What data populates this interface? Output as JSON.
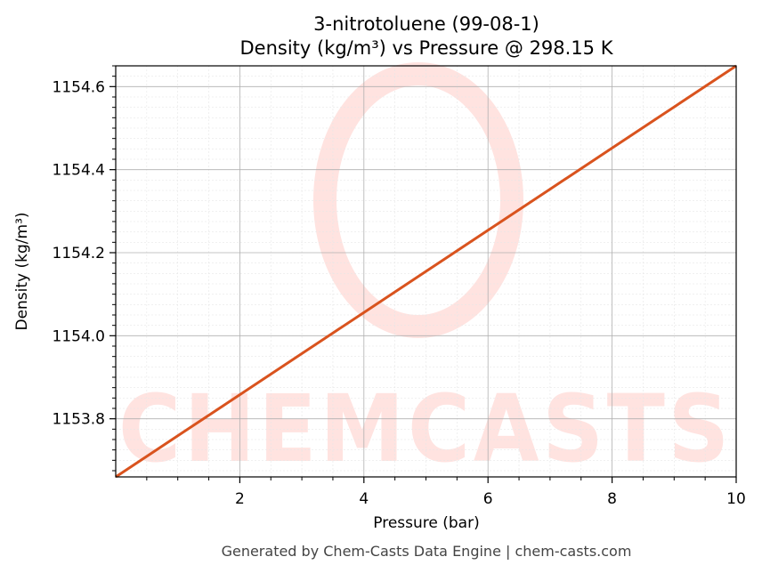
{
  "chart_data": {
    "type": "line",
    "title": "3-nitrotoluene (99-08-1)",
    "subtitle": "Density (kg/m³) vs Pressure @ 298.15 K",
    "xlabel": "Pressure (bar)",
    "ylabel": "Density (kg/m³)",
    "xlim": [
      0,
      10
    ],
    "ylim": [
      1153.66,
      1154.65
    ],
    "x_ticks": [
      2,
      4,
      6,
      8,
      10
    ],
    "x_tick_labels": [
      "2",
      "4",
      "6",
      "8",
      "10"
    ],
    "y_ticks": [
      1153.8,
      1154.0,
      1154.2,
      1154.4,
      1154.6
    ],
    "y_tick_labels": [
      "1153.8",
      "1154.0",
      "1154.2",
      "1154.4",
      "1154.6"
    ],
    "grid": true,
    "series": [
      {
        "x": [
          0,
          1,
          2,
          3,
          4,
          5,
          6,
          7,
          8,
          9,
          10
        ],
        "y": [
          1153.66,
          1153.759,
          1153.858,
          1153.957,
          1154.056,
          1154.155,
          1154.254,
          1154.353,
          1154.452,
          1154.551,
          1154.65
        ],
        "color": "#d9531e"
      }
    ]
  },
  "watermark": "CHEMCASTS",
  "footer": "Generated by Chem-Casts Data Engine | chem-casts.com"
}
